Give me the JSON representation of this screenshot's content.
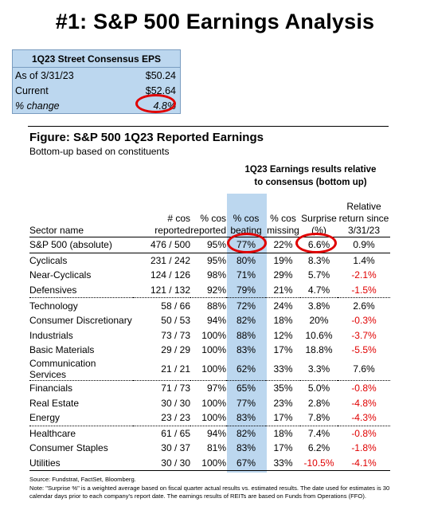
{
  "title": "#1: S&P 500 Earnings Analysis",
  "eps_box": {
    "header": "1Q23 Street Consensus EPS",
    "rows": [
      {
        "label": "As of  3/31/23",
        "value": "$50.24"
      },
      {
        "label": "Current",
        "value": "$52.64"
      },
      {
        "label": "% change",
        "value": "4.8%"
      }
    ]
  },
  "figure": {
    "title": "Figure: S&P 500 1Q23 Reported Earnings",
    "subtitle": "Bottom-up based on constituents",
    "group_header_line1": "1Q23 Earnings results relative",
    "group_header_line2": "to consensus (bottom up)"
  },
  "columns": {
    "sector": "Sector name",
    "cos_1": "# cos",
    "cos_2": "reported",
    "pct_rep_1": "% cos",
    "pct_rep_2": "reported",
    "beat_1": "% cos",
    "beat_2": "beating",
    "miss_1": "% cos",
    "miss_2": "missing",
    "surp_1": "Surprise",
    "surp_2": "(%)",
    "rel_1": "Relative",
    "rel_2": "return since",
    "rel_3": "3/31/23"
  },
  "rows": [
    {
      "sector": "S&P 500 (absolute)",
      "cos": "476 / 500",
      "reported": "95%",
      "beating": "77%",
      "missing": "22%",
      "surprise": "6.6%",
      "relative": "0.9%"
    },
    {
      "sector": "Cyclicals",
      "cos": "231 / 242",
      "reported": "95%",
      "beating": "80%",
      "missing": "19%",
      "surprise": "8.3%",
      "relative": "1.4%"
    },
    {
      "sector": "Near-Cyclicals",
      "cos": "124 / 126",
      "reported": "98%",
      "beating": "71%",
      "missing": "29%",
      "surprise": "5.7%",
      "relative": "-2.1%"
    },
    {
      "sector": "Defensives",
      "cos": "121 / 132",
      "reported": "92%",
      "beating": "79%",
      "missing": "21%",
      "surprise": "4.7%",
      "relative": "-1.5%"
    },
    {
      "sector": "Technology",
      "cos": "58 / 66",
      "reported": "88%",
      "beating": "72%",
      "missing": "24%",
      "surprise": "3.8%",
      "relative": "2.6%"
    },
    {
      "sector": "Consumer Discretionary",
      "cos": "50 / 53",
      "reported": "94%",
      "beating": "82%",
      "missing": "18%",
      "surprise": "20%",
      "relative": "-0.3%"
    },
    {
      "sector": "Industrials",
      "cos": "73 / 73",
      "reported": "100%",
      "beating": "88%",
      "missing": "12%",
      "surprise": "10.6%",
      "relative": "-3.7%"
    },
    {
      "sector": "Basic Materials",
      "cos": "29 / 29",
      "reported": "100%",
      "beating": "83%",
      "missing": "17%",
      "surprise": "18.8%",
      "relative": "-5.5%"
    },
    {
      "sector": "Communication Services",
      "cos": "21 / 21",
      "reported": "100%",
      "beating": "62%",
      "missing": "33%",
      "surprise": "3.3%",
      "relative": "7.6%"
    },
    {
      "sector": "Financials",
      "cos": "71 / 73",
      "reported": "97%",
      "beating": "65%",
      "missing": "35%",
      "surprise": "5.0%",
      "relative": "-0.8%"
    },
    {
      "sector": "Real Estate",
      "cos": "30 / 30",
      "reported": "100%",
      "beating": "77%",
      "missing": "23%",
      "surprise": "2.8%",
      "relative": "-4.8%"
    },
    {
      "sector": "Energy",
      "cos": "23 / 23",
      "reported": "100%",
      "beating": "83%",
      "missing": "17%",
      "surprise": "7.8%",
      "relative": "-4.3%"
    },
    {
      "sector": "Healthcare",
      "cos": "61 / 65",
      "reported": "94%",
      "beating": "82%",
      "missing": "18%",
      "surprise": "7.4%",
      "relative": "-0.8%"
    },
    {
      "sector": "Consumer Staples",
      "cos": "30 / 37",
      "reported": "81%",
      "beating": "83%",
      "missing": "17%",
      "surprise": "6.2%",
      "relative": "-1.8%"
    },
    {
      "sector": "Utilities",
      "cos": "30 / 30",
      "reported": "100%",
      "beating": "67%",
      "missing": "33%",
      "surprise": "-10.5%",
      "relative": "-4.1%"
    }
  ],
  "source": "Source: Fundstrat, FactSet, Bloomberg.",
  "note": "Note: \"Surprise %\" is a weighted average based on fiscal quarter actual results vs. estimated results.  The date used for estimates is 30 calendar days prior to each company's report date. The earnings results of REITs are based on Funds from Operations (FFO).",
  "colors": {
    "highlight": "#bcd7ef",
    "negative": "#e00000",
    "oval": "#e00000"
  }
}
